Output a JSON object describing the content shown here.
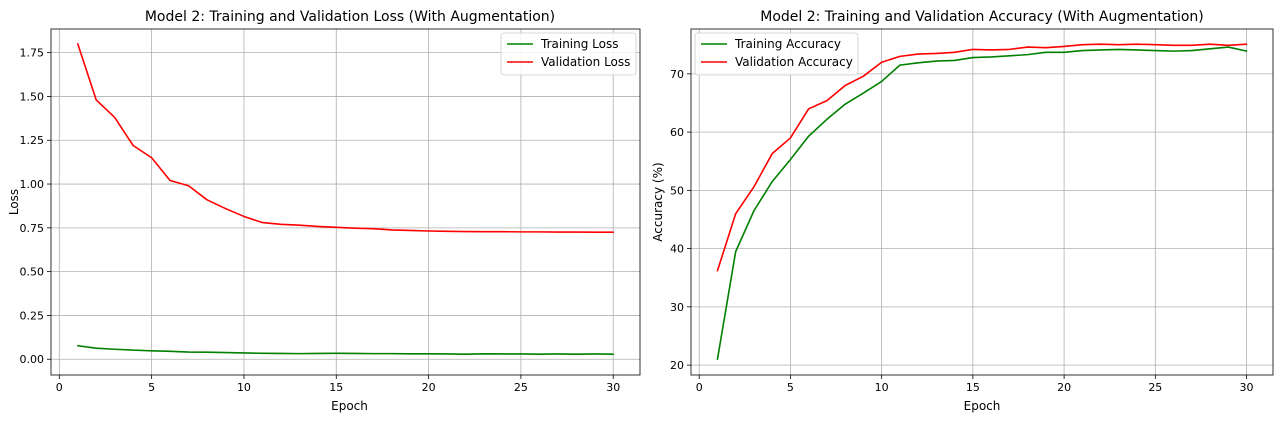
{
  "chart_data": [
    {
      "type": "line",
      "title": "Model 2: Training and Validation Loss (With Augmentation)",
      "xlabel": "Epoch",
      "ylabel": "Loss",
      "xlim": [
        -0.45,
        31.45
      ],
      "ylim": [
        -0.09,
        1.885
      ],
      "xticks": [
        0,
        5,
        10,
        15,
        20,
        25,
        30
      ],
      "yticks": [
        0.0,
        0.25,
        0.5,
        0.75,
        1.0,
        1.25,
        1.5,
        1.75
      ],
      "ytick_labels": [
        "0.00",
        "0.25",
        "0.50",
        "0.75",
        "1.00",
        "1.25",
        "1.50",
        "1.75"
      ],
      "grid": true,
      "legend_position": "top-right",
      "x": [
        1,
        2,
        3,
        4,
        5,
        6,
        7,
        8,
        9,
        10,
        11,
        12,
        13,
        14,
        15,
        16,
        17,
        18,
        19,
        20,
        21,
        22,
        23,
        24,
        25,
        26,
        27,
        28,
        29,
        30
      ],
      "series": [
        {
          "name": "Training Loss",
          "color": "#008000",
          "values": [
            0.077,
            0.063,
            0.057,
            0.052,
            0.048,
            0.045,
            0.041,
            0.04,
            0.038,
            0.036,
            0.034,
            0.033,
            0.032,
            0.033,
            0.034,
            0.033,
            0.032,
            0.032,
            0.031,
            0.031,
            0.03,
            0.029,
            0.031,
            0.03,
            0.03,
            0.029,
            0.03,
            0.029,
            0.03,
            0.029
          ]
        },
        {
          "name": "Validation Loss",
          "color": "#ff0000",
          "values": [
            1.8,
            1.48,
            1.38,
            1.22,
            1.15,
            1.02,
            0.99,
            0.91,
            0.86,
            0.815,
            0.78,
            0.77,
            0.765,
            0.758,
            0.753,
            0.748,
            0.745,
            0.738,
            0.735,
            0.732,
            0.73,
            0.729,
            0.728,
            0.728,
            0.727,
            0.727,
            0.726,
            0.726,
            0.725,
            0.725
          ]
        }
      ]
    },
    {
      "type": "line",
      "title": "Model 2: Training and Validation Accuracy (With Augmentation)",
      "xlabel": "Epoch",
      "ylabel": "Accuracy (%)",
      "xlim": [
        -0.45,
        31.45
      ],
      "ylim": [
        18.3,
        77.7
      ],
      "xticks": [
        0,
        5,
        10,
        15,
        20,
        25,
        30
      ],
      "yticks": [
        20,
        30,
        40,
        50,
        60,
        70
      ],
      "ytick_labels": [
        "20",
        "30",
        "40",
        "50",
        "60",
        "70"
      ],
      "grid": true,
      "legend_position": "top-left",
      "x": [
        1,
        2,
        3,
        4,
        5,
        6,
        7,
        8,
        9,
        10,
        11,
        12,
        13,
        14,
        15,
        16,
        17,
        18,
        19,
        20,
        21,
        22,
        23,
        24,
        25,
        26,
        27,
        28,
        29,
        30
      ],
      "series": [
        {
          "name": "Training Accuracy",
          "color": "#008000",
          "values": [
            21.0,
            39.5,
            46.5,
            51.5,
            55.3,
            59.3,
            62.2,
            64.8,
            66.7,
            68.7,
            71.5,
            71.9,
            72.2,
            72.3,
            72.8,
            72.9,
            73.1,
            73.3,
            73.7,
            73.7,
            74.0,
            74.1,
            74.2,
            74.1,
            74.0,
            73.9,
            74.0,
            74.3,
            74.6,
            73.9
          ]
        },
        {
          "name": "Validation Accuracy",
          "color": "#ff0000",
          "values": [
            36.2,
            46.0,
            50.6,
            56.3,
            59.0,
            64.0,
            65.4,
            68.0,
            69.6,
            72.0,
            73.0,
            73.4,
            73.5,
            73.7,
            74.2,
            74.1,
            74.2,
            74.6,
            74.5,
            74.7,
            75.0,
            75.1,
            75.0,
            75.1,
            75.0,
            74.9,
            74.9,
            75.1,
            74.9,
            75.1
          ]
        }
      ]
    }
  ]
}
